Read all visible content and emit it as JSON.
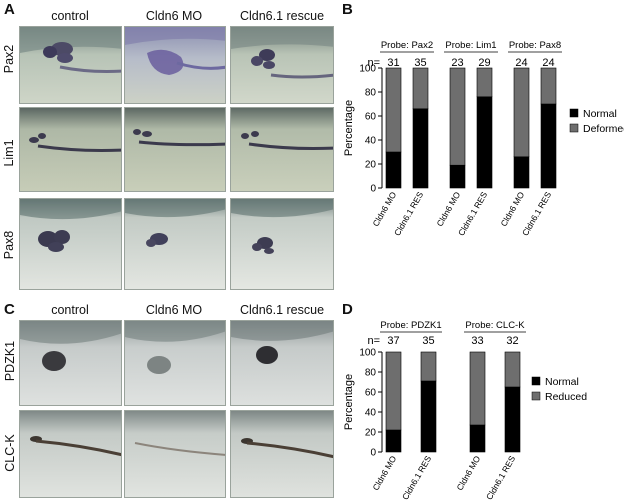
{
  "panels": {
    "A": {
      "label": "A",
      "columns": [
        "control",
        "Cldn6 MO",
        "Cldn6.1 rescue"
      ],
      "rows": [
        "Pax2",
        "Lim1",
        "Pax8"
      ]
    },
    "B": {
      "label": "B"
    },
    "C": {
      "label": "C",
      "columns": [
        "control",
        "Cldn6 MO",
        "Cldn6.1 rescue"
      ],
      "rows": [
        "PDZK1",
        "CLC-K"
      ]
    },
    "D": {
      "label": "D"
    }
  },
  "chart_data": [
    {
      "panel": "B",
      "type": "bar",
      "stacked": true,
      "ylabel": "Percentage",
      "ylim": [
        0,
        100
      ],
      "yticks": [
        0,
        20,
        40,
        60,
        80,
        100
      ],
      "n_prefix": "n=",
      "categories": [
        "Cldn6 MO",
        "Cldn6.1 RES",
        "Cldn6 MO",
        "Cldn6.1 RES",
        "Cldn6 MO",
        "Cldn6.1 RES"
      ],
      "groups": [
        {
          "probe": "Probe: Pax2",
          "n": [
            "31",
            "35"
          ]
        },
        {
          "probe": "Probe: Lim1",
          "n": [
            "23",
            "29"
          ]
        },
        {
          "probe": "Probe: Pax8",
          "n": [
            "24",
            "24"
          ]
        }
      ],
      "series": [
        {
          "name": "Normal",
          "color": "#000000",
          "values": [
            30,
            66,
            19,
            76,
            26,
            70
          ]
        },
        {
          "name": "Deformed",
          "color": "#6e6e6e",
          "values": [
            70,
            34,
            81,
            24,
            74,
            30
          ]
        }
      ],
      "legend": "right"
    },
    {
      "panel": "D",
      "type": "bar",
      "stacked": true,
      "ylabel": "Percentage",
      "ylim": [
        0,
        100
      ],
      "yticks": [
        0,
        20,
        40,
        60,
        80,
        100
      ],
      "n_prefix": "n=",
      "categories": [
        "Cldn6 MO",
        "Cldn6.1 RES",
        "Cldn6 MO",
        "Cldn6.1 RES"
      ],
      "groups": [
        {
          "probe": "Probe: PDZK1",
          "n": [
            "37",
            "35"
          ]
        },
        {
          "probe": "Probe: CLC-K",
          "n": [
            "33",
            "32"
          ]
        }
      ],
      "series": [
        {
          "name": "Normal",
          "color": "#000000",
          "values": [
            22,
            71,
            27,
            65
          ]
        },
        {
          "name": "Reduced",
          "color": "#6e6e6e",
          "values": [
            78,
            29,
            73,
            35
          ]
        }
      ],
      "legend": "right"
    }
  ]
}
